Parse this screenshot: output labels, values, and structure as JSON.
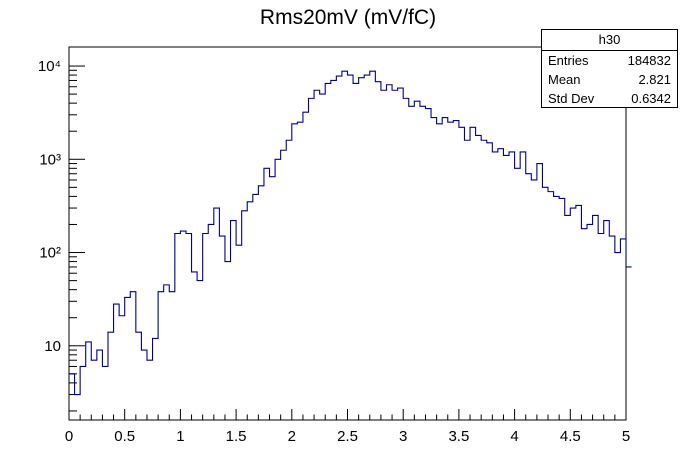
{
  "chart_data": {
    "type": "histogram",
    "title": "Rms20mV (mV/fC)",
    "xlabel": "",
    "ylabel": "",
    "xlim": [
      0,
      5
    ],
    "ylim": [
      1.6,
      16000
    ],
    "y_scale": "log",
    "bin_width": 0.05,
    "x_ticks": [
      "0",
      "0.5",
      "1",
      "1.5",
      "2",
      "2.5",
      "3",
      "3.5",
      "4",
      "4.5",
      "5"
    ],
    "y_ticks": [
      "10",
      "10²",
      "10³",
      "10⁴"
    ],
    "line_color": "#00008b",
    "series": [
      {
        "values": [
          5,
          3,
          6,
          11,
          7,
          9,
          6,
          14,
          28,
          21,
          33,
          38,
          14,
          9,
          7,
          12,
          38,
          45,
          38,
          160,
          170,
          160,
          62,
          50,
          160,
          200,
          300,
          150,
          80,
          220,
          120,
          280,
          350,
          420,
          520,
          800,
          650,
          1000,
          1250,
          1600,
          2400,
          2500,
          3200,
          4500,
          5500,
          5000,
          6500,
          7000,
          7800,
          8800,
          8000,
          6500,
          7500,
          8000,
          8800,
          6800,
          5500,
          6300,
          5500,
          5800,
          4500,
          3700,
          4200,
          3700,
          3500,
          2800,
          2400,
          2800,
          2500,
          2600,
          2200,
          1600,
          2200,
          1800,
          1600,
          1500,
          1200,
          1300,
          1100,
          1200,
          800,
          1200,
          700,
          600,
          900,
          500,
          450,
          400,
          380,
          250,
          300,
          320,
          180,
          200,
          250,
          160,
          220,
          150,
          100,
          140,
          70
        ]
      }
    ]
  },
  "stats_box": {
    "name": "h30",
    "rows": [
      {
        "label": "Entries",
        "value": "184832"
      },
      {
        "label": "Mean",
        "value": "2.821"
      },
      {
        "label": "Std Dev",
        "value": "0.6342"
      }
    ]
  }
}
